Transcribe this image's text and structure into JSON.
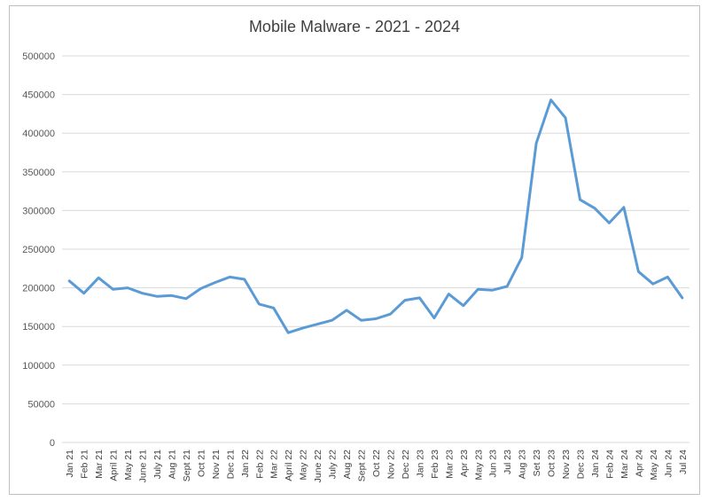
{
  "chart_data": {
    "type": "line",
    "title": "Mobile Malware - 2021 - 2024",
    "xlabel": "",
    "ylabel": "",
    "ylim": [
      0,
      500000
    ],
    "yticks": [
      0,
      50000,
      100000,
      150000,
      200000,
      250000,
      300000,
      350000,
      400000,
      450000,
      500000
    ],
    "grid": true,
    "legend": "none",
    "categories": [
      "Jan 21",
      "Feb 21",
      "Mar 21",
      "April 21",
      "May 21",
      "June 21",
      "July 21",
      "Aug 21",
      "Sept 21",
      "Oct 21",
      "Nov 21",
      "Dec 21",
      "Jan 22",
      "Feb 22",
      "Mar 22",
      "April 22",
      "May 22",
      "June 22",
      "July 22",
      "Aug 22",
      "Sept 22",
      "Oct 22",
      "Nov 22",
      "Dec 22",
      "Jan 23",
      "Feb 23",
      "Mar 23",
      "Apr 23",
      "May 23",
      "Jun 23",
      "Jul 23",
      "Aug 23",
      "Set 23",
      "Oct 23",
      "Nov 23",
      "Dec 23",
      "Jan 24",
      "Feb 24",
      "Mar 24",
      "Apr 24",
      "May 24",
      "Jun 24",
      "Jul 24"
    ],
    "series": [
      {
        "color": "#5B9BD5",
        "values": [
          209000,
          193000,
          213000,
          198000,
          200000,
          193000,
          189000,
          190000,
          186000,
          199000,
          207000,
          214000,
          211000,
          179000,
          174000,
          142000,
          148000,
          153000,
          158000,
          171000,
          158000,
          160000,
          166000,
          184000,
          187000,
          161000,
          192000,
          177000,
          198000,
          197000,
          202000,
          239000,
          387000,
          443000,
          420000,
          314000,
          303000,
          284000,
          304000,
          221000,
          205000,
          214000,
          187000
        ]
      }
    ]
  }
}
